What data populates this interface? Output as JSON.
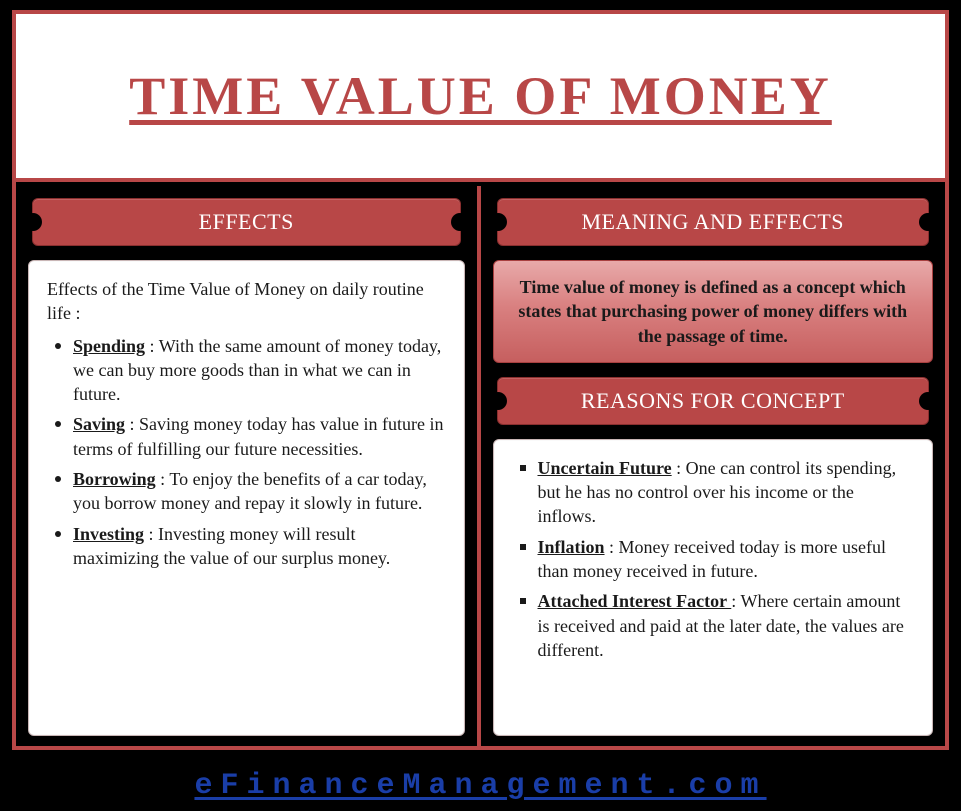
{
  "colors": {
    "page_bg": "#000000",
    "frame_border": "#b84747",
    "title_text": "#b84747",
    "ribbon_bg": "#b84747",
    "ribbon_text": "#ffffff",
    "panel_bg": "#ffffff",
    "body_text": "#1a1a1a",
    "def_gradient_top": "#e8a9a9",
    "def_gradient_bottom": "#c65f5f",
    "footer_link": "#1a3ea8"
  },
  "typography": {
    "title_fontsize": 54,
    "ribbon_fontsize": 22,
    "body_fontsize": 18,
    "footer_fontsize": 30,
    "title_family": "Book Antiqua",
    "body_family": "Calisto MT / Georgia"
  },
  "title": "TIME VALUE OF MONEY",
  "left": {
    "header": "EFFECTS",
    "intro": "Effects of the Time Value of Money on daily routine life :",
    "items": [
      {
        "term": "Spending",
        "text": " : With the same amount of money today, we can buy more goods than in what we can in future."
      },
      {
        "term": "Saving",
        "text": " : Saving money today has value in future in terms of fulfilling our future necessities."
      },
      {
        "term": "Borrowing",
        "text": " : To enjoy the benefits of a car today, you borrow money and repay it slowly in future."
      },
      {
        "term": "Investing",
        "text": " : Investing money will result maximizing the value of our surplus money."
      }
    ]
  },
  "right": {
    "header_top": "MEANING AND EFFECTS",
    "definition": "Time value of money is defined as a concept which states that purchasing power of money differs with the passage of time.",
    "header_bottom": "REASONS FOR CONCEPT",
    "reasons": [
      {
        "term": "Uncertain Future",
        "text": " : One can control its spending, but he has no control over his income or the inflows."
      },
      {
        "term": "Inflation",
        "text": " :  Money received today is more useful than money received in future."
      },
      {
        "term": "Attached Interest Factor ",
        "text": " : Where certain amount is received and paid at the later date, the values are different."
      }
    ]
  },
  "footer": "eFinanceManagement.com"
}
